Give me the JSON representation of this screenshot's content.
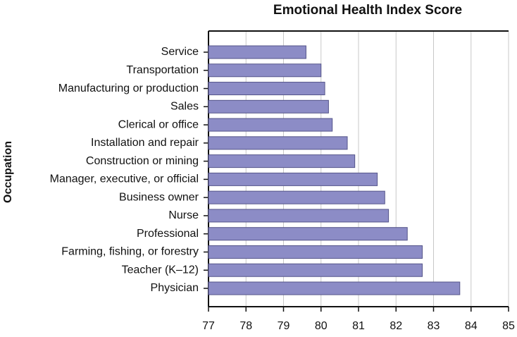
{
  "chart_data": {
    "type": "hbar",
    "title": "Emotional Health Index Score",
    "y_label": "Occupation",
    "categories": [
      "Service",
      "Transportation",
      "Manufacturing or production",
      "Sales",
      "Clerical or office",
      "Installation and repair",
      "Construction or mining",
      "Manager, executive, or official",
      "Business owner",
      "Nurse",
      "Professional",
      "Farming, fishing, or forestry",
      "Teacher (K–12)",
      "Physician"
    ],
    "values": [
      79.6,
      80.0,
      80.1,
      80.2,
      80.3,
      80.7,
      80.9,
      81.5,
      81.7,
      81.8,
      82.3,
      82.7,
      82.7,
      83.7
    ],
    "color": "#8c8cc6",
    "xlim": [
      77,
      85
    ],
    "xticks": [
      77,
      78,
      79,
      80,
      81,
      82,
      83,
      84,
      85
    ],
    "grid": true
  }
}
